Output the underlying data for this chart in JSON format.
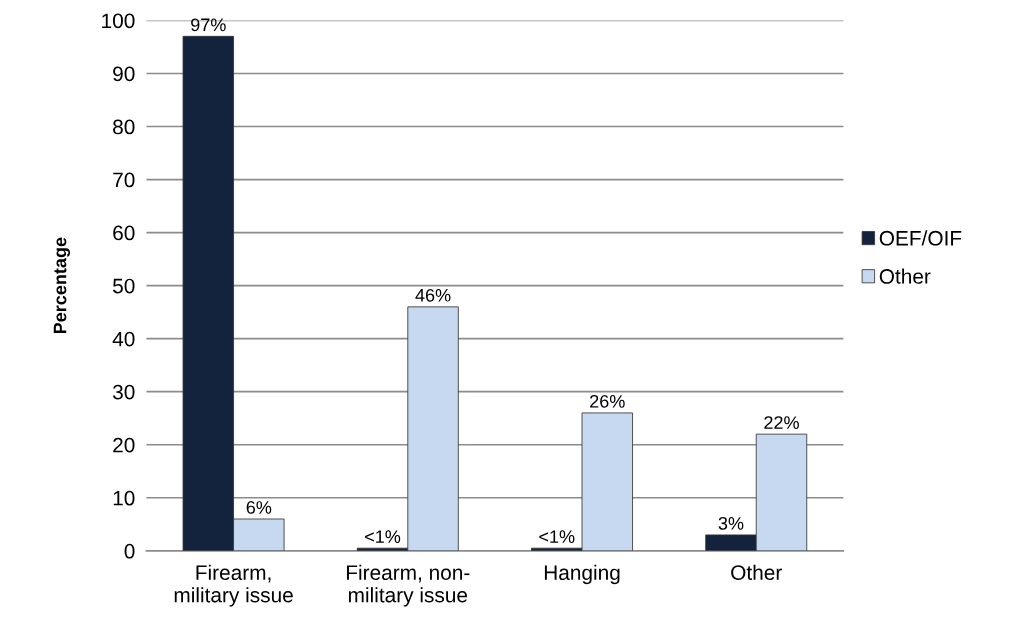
{
  "chart_data": {
    "type": "bar",
    "ylabel": "Percentage",
    "categories": [
      "Firearm,\nmilitary issue",
      "Firearm, non-\nmilitary issue",
      "Hanging",
      "Other"
    ],
    "series": [
      {
        "name": "OEF/OIF",
        "color": "#13233d",
        "values": [
          97,
          0.5,
          0.5,
          3
        ],
        "value_labels": [
          "97%",
          "<1%",
          "<1%",
          "3%"
        ]
      },
      {
        "name": "Other",
        "color": "#c6d9f1",
        "values": [
          6,
          46,
          26,
          22
        ],
        "value_labels": [
          "6%",
          "46%",
          "26%",
          "22%"
        ]
      }
    ],
    "ylim": [
      0,
      100
    ],
    "yticks": [
      0,
      10,
      20,
      30,
      40,
      50,
      60,
      70,
      80,
      90,
      100
    ],
    "grid": "y",
    "legend": "right"
  }
}
